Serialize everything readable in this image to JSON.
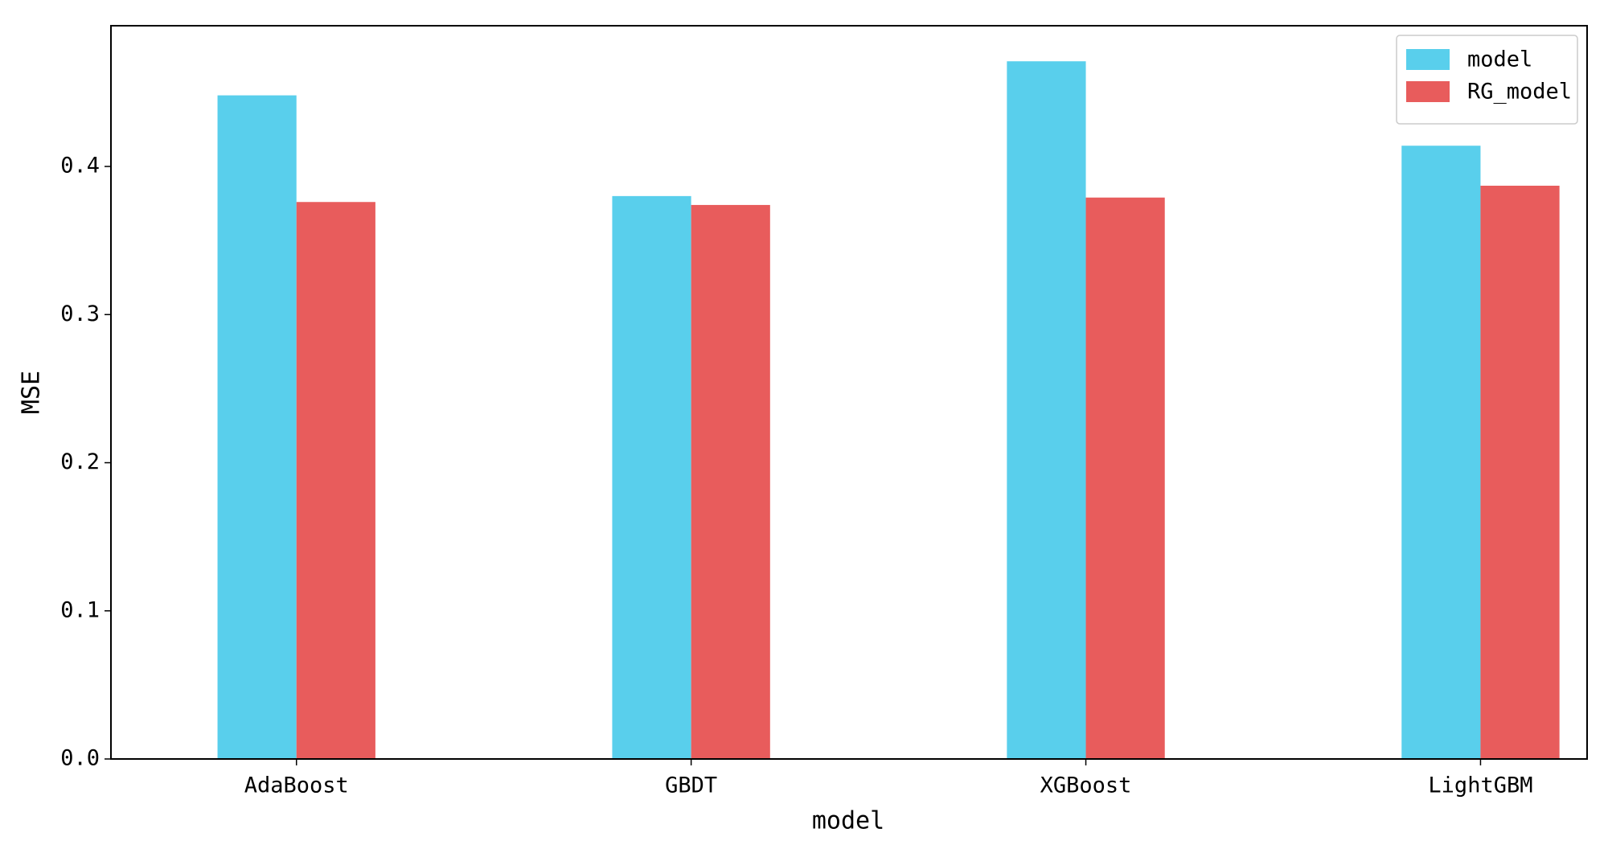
{
  "chart_data": {
    "type": "bar",
    "categories": [
      "AdaBoost",
      "GBDT",
      "XGBoost",
      "LightGBM"
    ],
    "series": [
      {
        "name": "model",
        "color": "#59cfec",
        "values": [
          0.448,
          0.38,
          0.471,
          0.414
        ]
      },
      {
        "name": "RG_model",
        "color": "#e85c5c",
        "values": [
          0.376,
          0.374,
          0.379,
          0.387
        ]
      }
    ],
    "xlabel": "model",
    "ylabel": "MSE",
    "ylim": [
      0,
      0.495
    ],
    "yticks": [
      {
        "value": 0,
        "label": "0.0"
      },
      0.1,
      0.2,
      0.3,
      0.4
    ],
    "legend": "upper right"
  }
}
